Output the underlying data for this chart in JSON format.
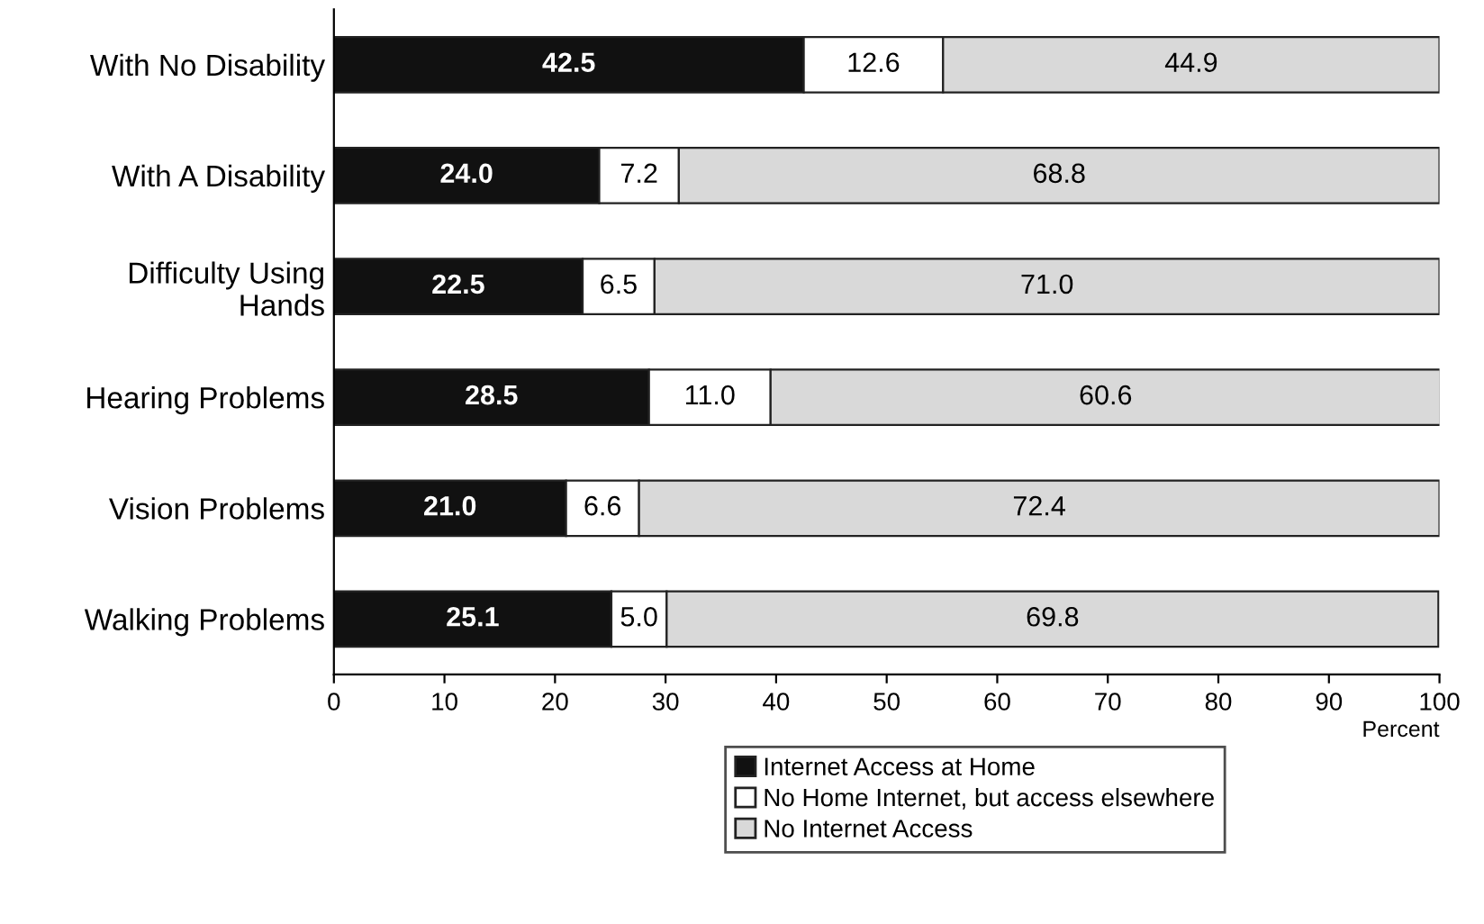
{
  "chart_data": {
    "type": "bar",
    "orientation": "horizontal",
    "stacked": true,
    "legend": "bottom",
    "xlabel": "Percent",
    "categories": [
      "With No Disability",
      "With A Disability",
      "Difficulty Using\nHands",
      "Hearing Problems",
      "Vision Problems",
      "Walking Problems"
    ],
    "series": [
      {
        "name": "Internet Access at Home",
        "color": "#111111",
        "values": [
          42.5,
          24.0,
          22.5,
          28.5,
          21.0,
          25.1
        ],
        "value_labels": [
          "42.5",
          "24.0",
          "22.5",
          "28.5",
          "21.0",
          "25.1"
        ]
      },
      {
        "name": "No Home Internet, but access elsewhere",
        "color": "#ffffff",
        "values": [
          12.6,
          7.2,
          6.5,
          11.0,
          6.6,
          5.0
        ],
        "value_labels": [
          "12.6",
          "7.2",
          "6.5",
          "11.0",
          "6.6",
          "5.0"
        ]
      },
      {
        "name": "No Internet Access",
        "color": "#d9d9d9",
        "values": [
          44.9,
          68.8,
          71.0,
          60.6,
          72.4,
          69.8
        ],
        "value_labels": [
          "44.9",
          "68.8",
          "71.0",
          "60.6",
          "72.4",
          "69.8"
        ]
      }
    ],
    "xlim": [
      0,
      100
    ],
    "xticks": [
      0,
      10,
      20,
      30,
      40,
      50,
      60,
      70,
      80,
      90,
      100
    ]
  }
}
